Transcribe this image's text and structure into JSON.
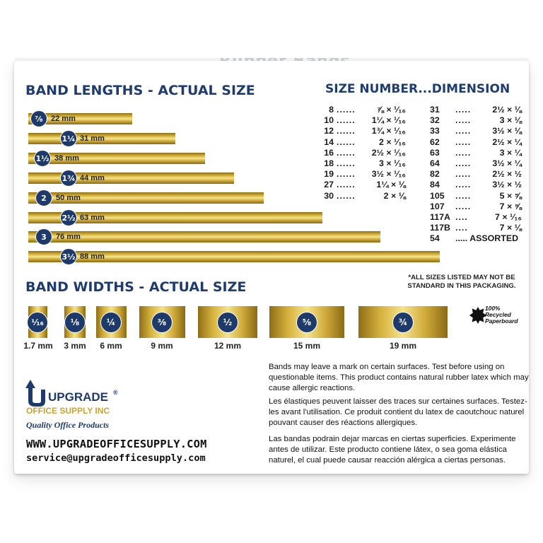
{
  "box_title": "Rubber Bands",
  "lengths_heading": "BAND LENGTHS - ACTUAL SIZE",
  "size_heading": "SIZE NUMBER...DIMENSION",
  "widths_heading": "BAND WIDTHS - ACTUAL SIZE",
  "lengths": [
    {
      "fraction": "⅞",
      "mm": "22 mm"
    },
    {
      "fraction": "1¼",
      "mm": "31 mm"
    },
    {
      "fraction": "1½",
      "mm": "38 mm"
    },
    {
      "fraction": "1¾",
      "mm": "44 mm"
    },
    {
      "fraction": "2",
      "mm": "50 mm"
    },
    {
      "fraction": "2½",
      "mm": "63 mm"
    },
    {
      "fraction": "3",
      "mm": "76 mm"
    },
    {
      "fraction": "3½",
      "mm": "88 mm"
    }
  ],
  "sizes_left": [
    {
      "num": "8",
      "dots": "......",
      "dim": "⅞ × ¹⁄₁₆"
    },
    {
      "num": "10",
      "dots": "......",
      "dim": "1¼ × ¹⁄₁₆"
    },
    {
      "num": "12",
      "dots": "......",
      "dim": "1¾ × ¹⁄₁₆"
    },
    {
      "num": "14",
      "dots": "......",
      "dim": "2 × ¹⁄₁₆"
    },
    {
      "num": "16",
      "dots": "......",
      "dim": "2½ × ¹⁄₁₆"
    },
    {
      "num": "18",
      "dots": "......",
      "dim": "3 × ¹⁄₁₆"
    },
    {
      "num": "19",
      "dots": "......",
      "dim": "3½ × ¹⁄₁₆"
    },
    {
      "num": "27",
      "dots": "......",
      "dim": "1¼ × ⅛"
    },
    {
      "num": "30",
      "dots": "......",
      "dim": "2 × ⅛"
    }
  ],
  "sizes_right": [
    {
      "num": "31",
      "dots": ".....",
      "dim": "2½ × ⅛"
    },
    {
      "num": "32",
      "dots": ".....",
      "dim": "3 × ⅛"
    },
    {
      "num": "33",
      "dots": ".....",
      "dim": "3½ × ⅛"
    },
    {
      "num": "62",
      "dots": ".....",
      "dim": "2½ × ¼"
    },
    {
      "num": "63",
      "dots": ".....",
      "dim": "3 × ¼"
    },
    {
      "num": "64",
      "dots": ".....",
      "dim": "3½ × ¼"
    },
    {
      "num": "82",
      "dots": ".....",
      "dim": "2½ × ½"
    },
    {
      "num": "84",
      "dots": ".....",
      "dim": "3½ × ½"
    },
    {
      "num": "105",
      "dots": ".....",
      "dim": "5 × ⅝"
    },
    {
      "num": "107",
      "dots": ".....",
      "dim": "7 × ⅝"
    },
    {
      "num": "117A",
      "dots": "....",
      "dim": "7 × ¹⁄₁₆"
    },
    {
      "num": "117B",
      "dots": "....",
      "dim": "7 × ⅛"
    }
  ],
  "assorted": {
    "num": "54",
    "text": "..... ASSORTED"
  },
  "note": "*ALL SIZES LISTED MAY NOT BE STANDARD IN THIS PACKAGING.",
  "widths": [
    {
      "fraction": "¹⁄₁₆",
      "mm": "1.7 mm"
    },
    {
      "fraction": "⅛",
      "mm": "3 mm"
    },
    {
      "fraction": "¼",
      "mm": "6 mm"
    },
    {
      "fraction": "⅜",
      "mm": "9 mm"
    },
    {
      "fraction": "½",
      "mm": "12 mm"
    },
    {
      "fraction": "⅝",
      "mm": "15 mm"
    },
    {
      "fraction": "¾",
      "mm": "19 mm"
    }
  ],
  "recycled": {
    "line1": "100%",
    "line2": "Recycled",
    "line3": "Paperboard"
  },
  "logo": {
    "brand": "UPGRADE",
    "reg": "®",
    "company": "OFFICE SUPPLY INC",
    "tagline": "Quality Office Products"
  },
  "contact": {
    "website": "WWW.UPGRADEOFFICESUPPLY.COM",
    "email": "service@upgradeofficesupply.com"
  },
  "warnings": {
    "en": "Bands may leave a mark on certain surfaces. Test before using on questionable items. This product contains natural rubber latex which may cause allergic reactions.",
    "fr": "Les élastiques peuvent laisser des traces sur certaines surfaces. Testez-les avant l'utilisation. Ce produit contient du latex de caoutchouc naturel pouvant causer des réactions allergiques.",
    "es": "Las bandas podrain dejar marcas en ciertas superficies. Experimente antes de utilizar. Este producto contiene látex, o sea goma elástica naturel, el cual puede causar reacción alérgica a ciertas personas."
  },
  "colors": {
    "navy": "#1e3a6b",
    "gold": "#d6b23e",
    "gold_light": "#f4e38b"
  }
}
